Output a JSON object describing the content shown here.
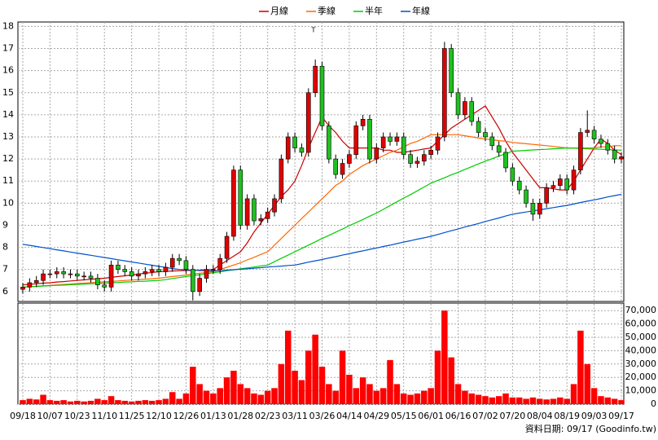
{
  "chart_data": {
    "type": "candlestick",
    "annotations": [
      "T"
    ],
    "footer": "資料日期: 09/17 (Goodinfo.tw)",
    "up_color": "#e00000",
    "down_color": "#20c020",
    "volume_color": "#ff0000",
    "grid": true,
    "categories": [
      "09/18",
      null,
      null,
      null,
      "10/07",
      null,
      null,
      null,
      "10/23",
      null,
      null,
      null,
      "11/10",
      null,
      null,
      null,
      "11/25",
      null,
      null,
      null,
      "12/10",
      null,
      null,
      null,
      "12/26",
      null,
      null,
      null,
      "01/13",
      null,
      null,
      null,
      "01/28",
      null,
      null,
      null,
      "02/23",
      null,
      null,
      null,
      "03/11",
      null,
      null,
      null,
      "03/26",
      null,
      null,
      null,
      "04/14",
      null,
      null,
      null,
      "04/29",
      null,
      null,
      null,
      "05/15",
      null,
      null,
      null,
      "06/01",
      null,
      null,
      null,
      "06/16",
      null,
      null,
      null,
      "07/02",
      null,
      null,
      null,
      "07/20",
      null,
      null,
      null,
      "08/04",
      null,
      null,
      null,
      "08/19",
      null,
      null,
      null,
      "09/03",
      null,
      null,
      null,
      "09/17"
    ],
    "open": [
      6.1,
      6.2,
      6.4,
      6.5,
      6.8,
      6.8,
      6.9,
      6.8,
      6.8,
      6.7,
      6.7,
      6.6,
      6.3,
      6.2,
      7.2,
      7.0,
      6.9,
      6.7,
      6.8,
      6.9,
      7.0,
      6.9,
      7.1,
      7.5,
      7.4,
      7.0,
      6.0,
      6.6,
      7.0,
      7.0,
      7.5,
      8.5,
      11.5,
      9.0,
      10.2,
      9.2,
      9.3,
      9.6,
      10.2,
      12.0,
      13.0,
      12.5,
      12.3,
      15.0,
      16.2,
      13.5,
      12.0,
      11.3,
      11.8,
      12.2,
      13.5,
      13.8,
      12.0,
      12.5,
      13.0,
      12.8,
      13.0,
      12.2,
      11.8,
      11.9,
      12.2,
      12.4,
      13.0,
      17.0,
      15.0,
      14.0,
      14.6,
      13.7,
      13.2,
      13.0,
      12.6,
      12.3,
      11.6,
      11.0,
      10.6,
      10.0,
      9.5,
      10.0,
      10.7,
      10.8,
      11.1,
      10.6,
      11.5,
      13.2,
      13.3,
      12.9,
      12.7,
      12.4,
      12.0
    ],
    "high": [
      6.4,
      6.6,
      6.7,
      7.0,
      7.0,
      7.1,
      7.1,
      7.0,
      7.0,
      6.9,
      6.9,
      6.8,
      6.5,
      7.4,
      7.4,
      7.2,
      7.1,
      7.0,
      7.1,
      7.2,
      7.2,
      7.3,
      7.7,
      7.7,
      7.6,
      7.2,
      6.8,
      7.2,
      7.2,
      7.7,
      8.7,
      11.7,
      11.7,
      10.4,
      10.4,
      9.5,
      9.8,
      10.4,
      12.2,
      13.2,
      13.2,
      12.7,
      15.2,
      16.5,
      16.4,
      13.7,
      12.2,
      12.0,
      12.4,
      13.7,
      14.0,
      14.0,
      12.7,
      13.2,
      13.2,
      13.2,
      13.2,
      12.4,
      12.1,
      12.4,
      12.6,
      13.2,
      17.3,
      17.2,
      15.2,
      14.8,
      14.8,
      13.9,
      13.4,
      13.2,
      12.8,
      12.5,
      11.8,
      11.2,
      10.8,
      10.2,
      10.2,
      10.9,
      11.0,
      11.3,
      11.3,
      11.7,
      13.4,
      14.2,
      13.5,
      13.1,
      12.9,
      12.6,
      12.3
    ],
    "low": [
      5.9,
      6.0,
      6.2,
      6.3,
      6.6,
      6.6,
      6.6,
      6.6,
      6.5,
      6.5,
      6.4,
      6.1,
      6.0,
      6.0,
      6.8,
      6.7,
      6.5,
      6.5,
      6.6,
      6.7,
      6.7,
      6.7,
      6.9,
      7.2,
      6.8,
      5.6,
      5.8,
      6.4,
      6.8,
      6.8,
      7.3,
      8.3,
      8.8,
      8.8,
      9.0,
      9.0,
      9.1,
      9.4,
      10.0,
      11.8,
      12.3,
      12.1,
      12.1,
      14.8,
      13.3,
      11.8,
      11.1,
      11.1,
      11.6,
      12.0,
      13.3,
      11.8,
      11.8,
      12.3,
      12.6,
      12.6,
      12.0,
      11.6,
      11.6,
      11.7,
      12.0,
      12.2,
      12.8,
      14.8,
      13.8,
      13.8,
      13.5,
      13.0,
      12.8,
      12.4,
      12.1,
      11.4,
      10.8,
      10.4,
      9.8,
      9.2,
      9.3,
      9.8,
      10.5,
      10.6,
      10.4,
      10.4,
      11.3,
      13.0,
      12.7,
      12.5,
      12.2,
      11.8,
      11.8
    ],
    "close": [
      6.2,
      6.4,
      6.5,
      6.8,
      6.8,
      6.9,
      6.8,
      6.8,
      6.7,
      6.7,
      6.6,
      6.3,
      6.2,
      7.2,
      7.0,
      6.9,
      6.7,
      6.8,
      6.9,
      7.0,
      6.9,
      7.1,
      7.5,
      7.4,
      7.0,
      6.0,
      6.6,
      7.0,
      7.0,
      7.5,
      8.5,
      11.5,
      9.0,
      10.2,
      9.2,
      9.3,
      9.6,
      10.2,
      12.0,
      13.0,
      12.5,
      12.3,
      15.0,
      16.2,
      13.5,
      12.0,
      11.3,
      11.8,
      12.2,
      13.5,
      13.8,
      12.0,
      12.5,
      13.0,
      12.8,
      13.0,
      12.2,
      11.8,
      11.9,
      12.2,
      12.4,
      13.0,
      17.0,
      15.0,
      14.0,
      14.6,
      13.7,
      13.2,
      13.0,
      12.6,
      12.3,
      11.6,
      11.0,
      10.6,
      10.0,
      9.5,
      10.0,
      10.7,
      10.8,
      11.1,
      10.6,
      11.5,
      13.2,
      13.3,
      12.9,
      12.7,
      12.4,
      12.0,
      12.1
    ],
    "volume": [
      3000,
      4000,
      3500,
      7000,
      3000,
      2500,
      3000,
      2000,
      2500,
      2000,
      2500,
      4000,
      3000,
      6000,
      3000,
      2500,
      2000,
      2500,
      3000,
      2500,
      3000,
      4000,
      9000,
      4000,
      8000,
      28000,
      15000,
      10000,
      8000,
      12000,
      20000,
      25000,
      15000,
      12000,
      8000,
      7000,
      10000,
      12000,
      30000,
      55000,
      25000,
      18000,
      40000,
      52000,
      28000,
      15000,
      10000,
      40000,
      22000,
      12000,
      20000,
      15000,
      10000,
      12000,
      33000,
      15000,
      8000,
      7000,
      8000,
      10000,
      12000,
      40000,
      70000,
      35000,
      15000,
      10000,
      8000,
      7000,
      6000,
      5000,
      6000,
      8000,
      5000,
      5000,
      4000,
      5000,
      4000,
      3500,
      4000,
      5000,
      4000,
      15000,
      55000,
      30000,
      12000,
      6000,
      5000,
      4000,
      3000
    ],
    "series": [
      {
        "name": "月線",
        "color": "#cc0000",
        "values": [
          6.3,
          6.33,
          6.35,
          6.38,
          6.4,
          6.43,
          6.45,
          6.48,
          6.5,
          6.53,
          6.55,
          6.58,
          6.6,
          6.64,
          6.68,
          6.71,
          6.75,
          6.79,
          6.83,
          6.86,
          6.9,
          6.91,
          6.93,
          6.94,
          6.95,
          6.96,
          6.97,
          6.99,
          7.0,
          7.2,
          7.4,
          7.6,
          7.8,
          8.2,
          8.7,
          9.1,
          9.5,
          9.9,
          10.3,
          10.6,
          11.0,
          11.7,
          12.5,
          13.2,
          13.9,
          13.5,
          13.2,
          12.8,
          12.5,
          12.5,
          12.5,
          12.5,
          12.5,
          12.4,
          12.4,
          12.3,
          12.3,
          12.35,
          12.4,
          12.45,
          12.5,
          12.8,
          13.1,
          13.4,
          13.6,
          13.8,
          14.0,
          14.2,
          14.4,
          13.9,
          13.4,
          12.8,
          12.3,
          11.9,
          11.5,
          11.1,
          10.7,
          10.7,
          10.65,
          10.6,
          10.6,
          11.0,
          11.5,
          12.0,
          12.5,
          12.9,
          12.7,
          12.4,
          12.2
        ]
      },
      {
        "name": "季線",
        "color": "#ff6600",
        "values": [
          6.2,
          6.22,
          6.24,
          6.26,
          6.28,
          6.3,
          6.32,
          6.34,
          6.36,
          6.38,
          6.4,
          6.42,
          6.44,
          6.46,
          6.48,
          6.5,
          6.52,
          6.54,
          6.56,
          6.58,
          6.6,
          6.64,
          6.68,
          6.71,
          6.75,
          6.79,
          6.83,
          6.86,
          6.9,
          7.0,
          7.1,
          7.2,
          7.3,
          7.43,
          7.55,
          7.68,
          7.8,
          8.1,
          8.4,
          8.7,
          9.0,
          9.3,
          9.6,
          9.9,
          10.2,
          10.5,
          10.8,
          11.0,
          11.3,
          11.5,
          11.7,
          11.85,
          12.0,
          12.15,
          12.3,
          12.4,
          12.55,
          12.7,
          12.8,
          12.95,
          13.1,
          13.1,
          13.1,
          13.1,
          13.1,
          13.05,
          13.0,
          12.95,
          12.9,
          12.87,
          12.83,
          12.8,
          12.75,
          12.72,
          12.69,
          12.66,
          12.63,
          12.6,
          12.57,
          12.53,
          12.5,
          12.5,
          12.5,
          12.5,
          12.5,
          12.55,
          12.55,
          12.6,
          12.6
        ]
      },
      {
        "name": "半年",
        "color": "#00cc00",
        "values": [
          6.2,
          6.22,
          6.23,
          6.25,
          6.26,
          6.28,
          6.29,
          6.31,
          6.32,
          6.34,
          6.35,
          6.37,
          6.38,
          6.4,
          6.41,
          6.43,
          6.44,
          6.46,
          6.47,
          6.49,
          6.5,
          6.54,
          6.59,
          6.63,
          6.68,
          6.72,
          6.76,
          6.81,
          6.85,
          6.89,
          6.94,
          6.98,
          7.03,
          7.07,
          7.11,
          7.16,
          7.2,
          7.35,
          7.5,
          7.65,
          7.8,
          7.95,
          8.1,
          8.25,
          8.4,
          8.54,
          8.69,
          8.83,
          8.98,
          9.12,
          9.26,
          9.41,
          9.55,
          9.72,
          9.89,
          10.06,
          10.23,
          10.39,
          10.56,
          10.73,
          10.9,
          11.03,
          11.15,
          11.28,
          11.4,
          11.53,
          11.65,
          11.78,
          11.9,
          12.01,
          12.13,
          12.24,
          12.35,
          12.37,
          12.39,
          12.41,
          12.43,
          12.44,
          12.46,
          12.48,
          12.5,
          12.49,
          12.48,
          12.46,
          12.45,
          12.44,
          12.43,
          12.41,
          12.4
        ]
      },
      {
        "name": "年線",
        "color": "#0050cc",
        "values": [
          8.14,
          8.09,
          8.04,
          7.99,
          7.94,
          7.89,
          7.84,
          7.79,
          7.74,
          7.69,
          7.64,
          7.59,
          7.54,
          7.49,
          7.44,
          7.39,
          7.34,
          7.29,
          7.24,
          7.19,
          7.14,
          7.09,
          7.04,
          7.0,
          6.98,
          6.97,
          6.95,
          6.94,
          6.92,
          6.94,
          6.97,
          6.99,
          7.01,
          7.03,
          7.06,
          7.08,
          7.11,
          7.13,
          7.15,
          7.18,
          7.2,
          7.26,
          7.33,
          7.39,
          7.45,
          7.52,
          7.58,
          7.65,
          7.71,
          7.78,
          7.84,
          7.91,
          7.97,
          8.04,
          8.1,
          8.17,
          8.24,
          8.3,
          8.37,
          8.43,
          8.5,
          8.58,
          8.67,
          8.75,
          8.83,
          8.92,
          9.0,
          9.08,
          9.17,
          9.25,
          9.33,
          9.42,
          9.5,
          9.55,
          9.6,
          9.65,
          9.7,
          9.75,
          9.8,
          9.85,
          9.9,
          9.96,
          10.03,
          10.09,
          10.15,
          10.21,
          10.28,
          10.34,
          10.4
        ]
      }
    ],
    "ylim": [
      5.55,
      18.2
    ],
    "yticks": [
      6,
      7,
      8,
      9,
      10,
      11,
      12,
      13,
      14,
      15,
      16,
      17,
      18
    ],
    "y2lim": [
      0,
      75000
    ],
    "y2ticks": [
      0,
      {
        "value": 10000,
        "label": "10,000"
      },
      {
        "value": 20000,
        "label": "20,000"
      },
      {
        "value": 30000,
        "label": "30,000"
      },
      {
        "value": 40000,
        "label": "40,000"
      },
      {
        "value": 50000,
        "label": "50,000"
      },
      {
        "value": 60000,
        "label": "60,000"
      },
      {
        "value": 70000,
        "label": "70,000"
      }
    ]
  }
}
